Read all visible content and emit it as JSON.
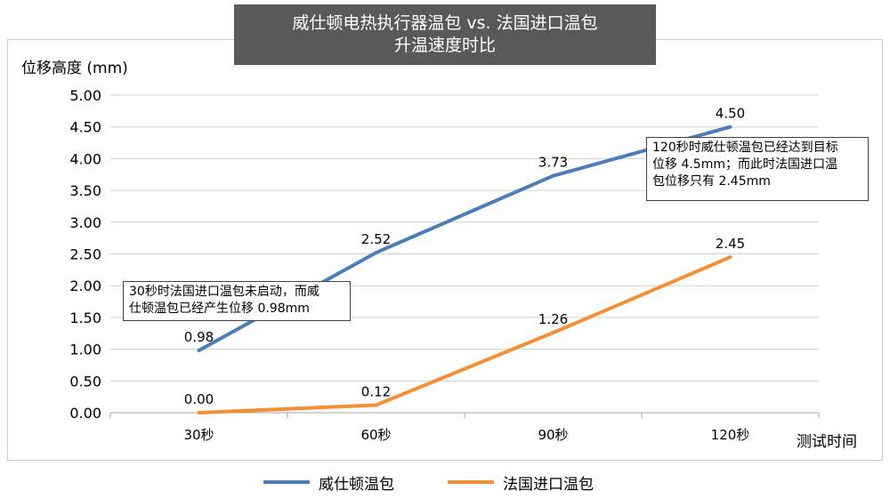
{
  "chart_data": {
    "type": "line",
    "title": [
      "威仕顿电热执行器温包 vs. 法国进口温包",
      "升温速度时比"
    ],
    "ylabel": "位移高度 (mm)",
    "xlabel": "测试时间",
    "categories": [
      "30秒",
      "60秒",
      "90秒",
      "120秒"
    ],
    "ylim": [
      0,
      5
    ],
    "yticks": [
      "0.00",
      "0.50",
      "1.00",
      "1.50",
      "2.00",
      "2.50",
      "3.00",
      "3.50",
      "4.00",
      "4.50",
      "5.00"
    ],
    "grid": true,
    "legend": "bottom",
    "series": [
      {
        "name": "威仕顿温包",
        "color": "#4a7ebb",
        "values": [
          0.98,
          2.52,
          3.73,
          4.5
        ],
        "labels": [
          "0.98",
          "2.52",
          "3.73",
          "4.50"
        ]
      },
      {
        "name": "法国进口温包",
        "color": "#f39035",
        "values": [
          0.0,
          0.12,
          1.26,
          2.45
        ],
        "labels": [
          "0.00",
          "0.12",
          "1.26",
          "2.45"
        ]
      }
    ],
    "annotations": [
      {
        "text": "30秒时法国进口温包未启动，而威\n仕顿温包已经产生位移 0.98mm"
      },
      {
        "text": "120秒时威仕顿温包已经达到目标\n位移 4.5mm；而此时法国进口温\n包位移只有 2.45mm"
      }
    ]
  }
}
